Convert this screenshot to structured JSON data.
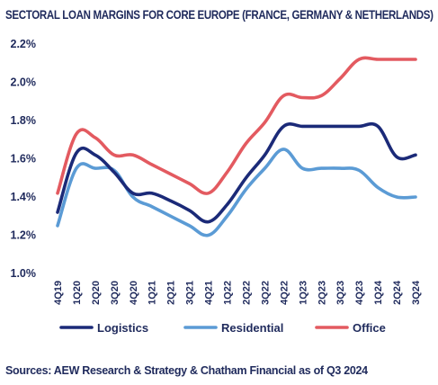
{
  "chart_data": {
    "type": "line",
    "title": "SECTORAL LOAN MARGINS FOR CORE EUROPE (FRANCE, GERMANY & NETHERLANDS)",
    "categories": [
      "4Q19",
      "1Q20",
      "2Q20",
      "3Q20",
      "4Q20",
      "1Q21",
      "2Q21",
      "3Q21",
      "4Q21",
      "1Q22",
      "2Q22",
      "3Q22",
      "4Q22",
      "1Q23",
      "2Q23",
      "3Q23",
      "4Q23",
      "1Q24",
      "2Q24",
      "3Q24"
    ],
    "y_ticks": [
      "1.0%",
      "1.2%",
      "1.4%",
      "1.6%",
      "1.8%",
      "2.0%",
      "2.2%"
    ],
    "ylim": [
      1.0,
      2.2
    ],
    "grid": false,
    "legend_position": "bottom",
    "series": [
      {
        "name": "Logistics",
        "color": "#1b2a78",
        "values": [
          1.32,
          1.63,
          1.62,
          1.53,
          1.42,
          1.42,
          1.38,
          1.33,
          1.27,
          1.36,
          1.5,
          1.62,
          1.77,
          1.77,
          1.77,
          1.77,
          1.77,
          1.77,
          1.61,
          1.62
        ]
      },
      {
        "name": "Residential",
        "color": "#5b9bd5",
        "values": [
          1.25,
          1.55,
          1.55,
          1.54,
          1.4,
          1.35,
          1.3,
          1.25,
          1.2,
          1.3,
          1.44,
          1.55,
          1.65,
          1.55,
          1.55,
          1.55,
          1.54,
          1.45,
          1.4,
          1.4
        ]
      },
      {
        "name": "Office",
        "color": "#e35a60",
        "values": [
          1.42,
          1.73,
          1.71,
          1.62,
          1.62,
          1.57,
          1.52,
          1.47,
          1.42,
          1.53,
          1.68,
          1.79,
          1.93,
          1.92,
          1.93,
          2.02,
          2.12,
          2.12,
          2.12,
          2.12
        ]
      }
    ]
  },
  "source": "Sources: AEW Research & Strategy & Chatham Financial as of Q3 2024"
}
